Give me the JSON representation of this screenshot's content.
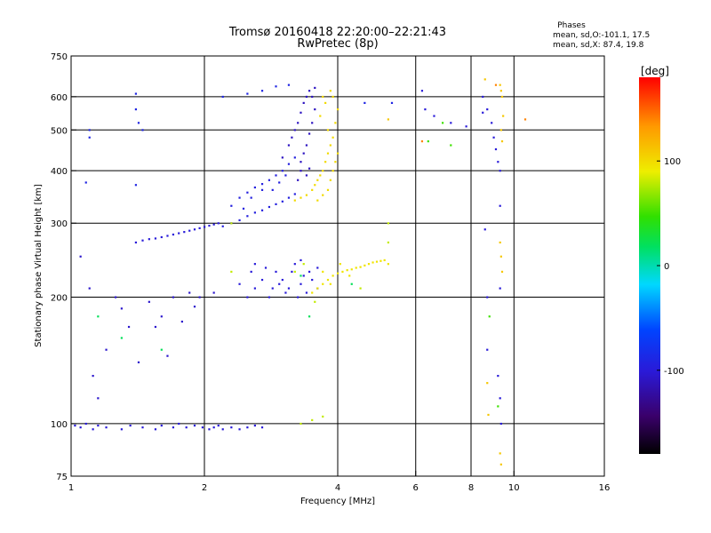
{
  "chart_data": {
    "type": "scatter",
    "title": "Tromsø 20160418 22:20:00–22:21:43",
    "subtitle": "RwPretec (8p)",
    "xlabel": "Frequency [MHz]",
    "ylabel": "Stationary phase Virtual Height [km]",
    "x_scale": "log2",
    "y_scale": "log",
    "xlim": [
      1,
      16
    ],
    "ylim": [
      75,
      750
    ],
    "x_ticks": [
      1,
      2,
      4,
      6,
      8,
      10,
      16
    ],
    "x_tick_labels": [
      "1",
      "2",
      "4",
      "6",
      "8",
      "10",
      "16"
    ],
    "x_grid": [
      2,
      4,
      6,
      8,
      10
    ],
    "y_ticks": [
      75,
      100,
      200,
      300,
      400,
      500,
      600,
      750
    ],
    "y_tick_labels": [
      "75",
      "100",
      "200",
      "300",
      "400",
      "500",
      "600",
      "750"
    ],
    "y_grid": [
      100,
      200,
      300,
      400,
      500,
      600
    ],
    "stats": {
      "heading": "Phases",
      "line_o": "mean, sd,O:-101.1, 17.5",
      "line_x": "mean, sd,X:  87.4, 19.8"
    },
    "colorbar": {
      "title": "[deg]",
      "range": [
        -180,
        180
      ],
      "ticks": [
        100,
        0,
        -100
      ],
      "tick_labels": [
        "100",
        "0",
        "-100"
      ]
    },
    "series": [
      {
        "values": [
          [
            1.02,
            99
          ],
          [
            1.05,
            98
          ],
          [
            1.08,
            100
          ],
          [
            1.12,
            97
          ],
          [
            1.15,
            99
          ],
          [
            1.2,
            98
          ],
          [
            1.3,
            97
          ],
          [
            1.36,
            99
          ],
          [
            1.45,
            98
          ],
          [
            1.55,
            97
          ],
          [
            1.6,
            99
          ],
          [
            1.7,
            98
          ],
          [
            1.75,
            100
          ],
          [
            1.82,
            98
          ],
          [
            1.9,
            99
          ],
          [
            1.98,
            98
          ],
          [
            2.05,
            97
          ],
          [
            2.1,
            98
          ],
          [
            2.15,
            99
          ],
          [
            2.2,
            97
          ],
          [
            2.3,
            98
          ],
          [
            2.4,
            97
          ],
          [
            2.5,
            98
          ],
          [
            2.6,
            99
          ],
          [
            2.7,
            98
          ]
        ],
        "phase": -100
      },
      {
        "values": [
          [
            1.05,
            250
          ],
          [
            1.1,
            210
          ],
          [
            1.12,
            130
          ],
          [
            1.15,
            115
          ],
          [
            1.2,
            150
          ],
          [
            1.26,
            200
          ],
          [
            1.3,
            188
          ],
          [
            1.35,
            170
          ],
          [
            1.42,
            140
          ],
          [
            1.5,
            195
          ],
          [
            1.55,
            170
          ],
          [
            1.6,
            180
          ],
          [
            1.65,
            145
          ],
          [
            1.7,
            200
          ],
          [
            1.78,
            175
          ],
          [
            1.85,
            205
          ],
          [
            1.9,
            190
          ],
          [
            1.95,
            200
          ],
          [
            2.1,
            205
          ]
        ],
        "phase": -105
      },
      {
        "values": [
          [
            1.4,
            270
          ],
          [
            1.45,
            273
          ],
          [
            1.5,
            275
          ],
          [
            1.55,
            276
          ],
          [
            1.6,
            278
          ],
          [
            1.65,
            280
          ],
          [
            1.7,
            282
          ],
          [
            1.75,
            284
          ],
          [
            1.8,
            286
          ],
          [
            1.85,
            288
          ],
          [
            1.9,
            290
          ],
          [
            1.95,
            292
          ],
          [
            2.0,
            294
          ],
          [
            2.05,
            296
          ],
          [
            2.1,
            298
          ],
          [
            2.15,
            300
          ]
        ],
        "phase": -100
      },
      {
        "values": [
          [
            2.2,
            295
          ],
          [
            2.3,
            300
          ],
          [
            2.4,
            305
          ],
          [
            2.5,
            312
          ],
          [
            2.6,
            318
          ],
          [
            2.7,
            322
          ],
          [
            2.8,
            328
          ],
          [
            2.9,
            333
          ],
          [
            3.0,
            338
          ],
          [
            3.1,
            345
          ],
          [
            3.2,
            352
          ],
          [
            2.4,
            345
          ],
          [
            2.5,
            355
          ],
          [
            2.6,
            365
          ],
          [
            2.7,
            372
          ],
          [
            2.8,
            380
          ],
          [
            2.9,
            390
          ],
          [
            3.0,
            400
          ],
          [
            3.1,
            415
          ],
          [
            3.2,
            430
          ],
          [
            2.3,
            330
          ],
          [
            2.45,
            325
          ],
          [
            2.55,
            345
          ],
          [
            2.7,
            360
          ],
          [
            2.85,
            360
          ],
          [
            2.95,
            375
          ],
          [
            3.05,
            390
          ]
        ],
        "phase": -95
      },
      {
        "values": [
          [
            3.0,
            430
          ],
          [
            3.1,
            460
          ],
          [
            3.15,
            480
          ],
          [
            3.2,
            500
          ],
          [
            3.25,
            520
          ],
          [
            3.3,
            550
          ],
          [
            3.35,
            580
          ],
          [
            3.4,
            600
          ],
          [
            3.45,
            620
          ],
          [
            3.3,
            420
          ],
          [
            3.35,
            440
          ],
          [
            3.4,
            460
          ],
          [
            3.45,
            490
          ],
          [
            3.5,
            520
          ],
          [
            3.55,
            560
          ],
          [
            3.5,
            600
          ],
          [
            3.55,
            630
          ],
          [
            3.25,
            380
          ],
          [
            3.3,
            400
          ],
          [
            3.4,
            390
          ],
          [
            3.45,
            405
          ]
        ],
        "phase": -110
      },
      {
        "values": [
          [
            3.2,
            340
          ],
          [
            3.3,
            345
          ],
          [
            3.4,
            350
          ],
          [
            3.5,
            360
          ],
          [
            3.55,
            370
          ],
          [
            3.6,
            380
          ],
          [
            3.65,
            390
          ],
          [
            3.7,
            400
          ],
          [
            3.75,
            420
          ],
          [
            3.8,
            440
          ],
          [
            3.85,
            460
          ],
          [
            3.9,
            480
          ],
          [
            3.95,
            520
          ],
          [
            4.0,
            560
          ],
          [
            3.6,
            340
          ],
          [
            3.7,
            350
          ],
          [
            3.8,
            360
          ],
          [
            3.85,
            380
          ],
          [
            3.9,
            400
          ],
          [
            3.95,
            420
          ],
          [
            4.0,
            440
          ],
          [
            3.9,
            600
          ],
          [
            3.85,
            620
          ],
          [
            3.75,
            580
          ],
          [
            3.7,
            600
          ],
          [
            3.8,
            500
          ],
          [
            3.65,
            540
          ]
        ],
        "phase": 100
      },
      {
        "values": [
          [
            2.5,
            200
          ],
          [
            2.6,
            210
          ],
          [
            2.7,
            220
          ],
          [
            2.8,
            200
          ],
          [
            2.9,
            230
          ],
          [
            3.0,
            220
          ],
          [
            3.1,
            210
          ],
          [
            3.15,
            230
          ],
          [
            3.2,
            240
          ],
          [
            3.25,
            200
          ],
          [
            3.3,
            215
          ],
          [
            3.35,
            225
          ],
          [
            3.4,
            205
          ],
          [
            3.45,
            230
          ],
          [
            3.5,
            220
          ],
          [
            3.6,
            210
          ],
          [
            2.6,
            240
          ],
          [
            2.75,
            235
          ],
          [
            2.95,
            215
          ],
          [
            3.05,
            205
          ],
          [
            2.4,
            215
          ],
          [
            2.55,
            230
          ],
          [
            2.85,
            210
          ],
          [
            3.3,
            245
          ],
          [
            3.6,
            235
          ]
        ],
        "phase": -100
      },
      {
        "values": [
          [
            3.5,
            205
          ],
          [
            3.6,
            210
          ],
          [
            3.7,
            215
          ],
          [
            3.8,
            220
          ],
          [
            3.9,
            225
          ],
          [
            4.0,
            228
          ],
          [
            4.1,
            230
          ],
          [
            4.2,
            232
          ],
          [
            4.3,
            233
          ],
          [
            4.4,
            235
          ],
          [
            4.5,
            236
          ],
          [
            4.6,
            238
          ],
          [
            4.7,
            240
          ],
          [
            4.8,
            242
          ],
          [
            4.9,
            243
          ],
          [
            5.0,
            244
          ],
          [
            5.1,
            245
          ],
          [
            5.2,
            240
          ],
          [
            3.7,
            230
          ],
          [
            3.85,
            215
          ],
          [
            4.05,
            240
          ],
          [
            4.25,
            225
          ]
        ],
        "phase": 95
      },
      {
        "values": [
          [
            3.3,
            100
          ],
          [
            3.5,
            102
          ],
          [
            3.7,
            104
          ],
          [
            2.3,
            300
          ],
          [
            2.3,
            230
          ],
          [
            5.2,
            300
          ],
          [
            5.2,
            270
          ],
          [
            3.2,
            230
          ],
          [
            3.35,
            240
          ],
          [
            3.55,
            195
          ],
          [
            4.5,
            210
          ]
        ],
        "phase": 80
      },
      {
        "values": [
          [
            1.15,
            180
          ],
          [
            1.3,
            160
          ],
          [
            1.6,
            150
          ],
          [
            4.3,
            215
          ],
          [
            3.3,
            225
          ],
          [
            3.45,
            180
          ]
        ],
        "phase": 20
      },
      {
        "values": [
          [
            8.5,
            600
          ],
          [
            8.7,
            560
          ],
          [
            8.9,
            520
          ],
          [
            9.0,
            480
          ],
          [
            9.1,
            450
          ],
          [
            9.2,
            420
          ],
          [
            9.3,
            400
          ],
          [
            9.3,
            330
          ],
          [
            9.3,
            210
          ],
          [
            9.2,
            130
          ],
          [
            9.3,
            115
          ],
          [
            9.35,
            100
          ],
          [
            6.2,
            620
          ],
          [
            6.3,
            560
          ],
          [
            6.6,
            540
          ],
          [
            7.2,
            520
          ],
          [
            7.8,
            510
          ],
          [
            8.5,
            550
          ],
          [
            8.6,
            290
          ],
          [
            8.7,
            200
          ],
          [
            8.7,
            150
          ]
        ],
        "phase": -100
      },
      {
        "values": [
          [
            8.6,
            660
          ],
          [
            9.3,
            640
          ],
          [
            9.35,
            620
          ],
          [
            9.4,
            600
          ],
          [
            9.45,
            540
          ],
          [
            9.35,
            500
          ],
          [
            9.4,
            470
          ],
          [
            9.3,
            270
          ],
          [
            9.35,
            250
          ],
          [
            9.4,
            230
          ],
          [
            8.7,
            125
          ],
          [
            8.75,
            105
          ],
          [
            9.3,
            85
          ],
          [
            9.35,
            80
          ],
          [
            5.2,
            530
          ]
        ],
        "phase": 110
      },
      {
        "values": [
          [
            6.4,
            470
          ],
          [
            6.9,
            520
          ],
          [
            7.2,
            460
          ],
          [
            8.8,
            180
          ],
          [
            9.2,
            110
          ]
        ],
        "phase": 50
      },
      {
        "values": [
          [
            6.2,
            470
          ],
          [
            10.6,
            530
          ],
          [
            9.1,
            640
          ]
        ],
        "phase": 140
      },
      {
        "values": [
          [
            1.4,
            610
          ],
          [
            1.4,
            560
          ],
          [
            1.42,
            520
          ],
          [
            1.45,
            500
          ],
          [
            1.4,
            370
          ],
          [
            1.1,
            480
          ],
          [
            1.1,
            500
          ],
          [
            1.08,
            375
          ],
          [
            2.2,
            600
          ],
          [
            2.5,
            610
          ],
          [
            2.7,
            620
          ],
          [
            2.9,
            635
          ],
          [
            3.1,
            640
          ],
          [
            4.6,
            580
          ],
          [
            5.3,
            580
          ]
        ],
        "phase": -90
      }
    ]
  }
}
